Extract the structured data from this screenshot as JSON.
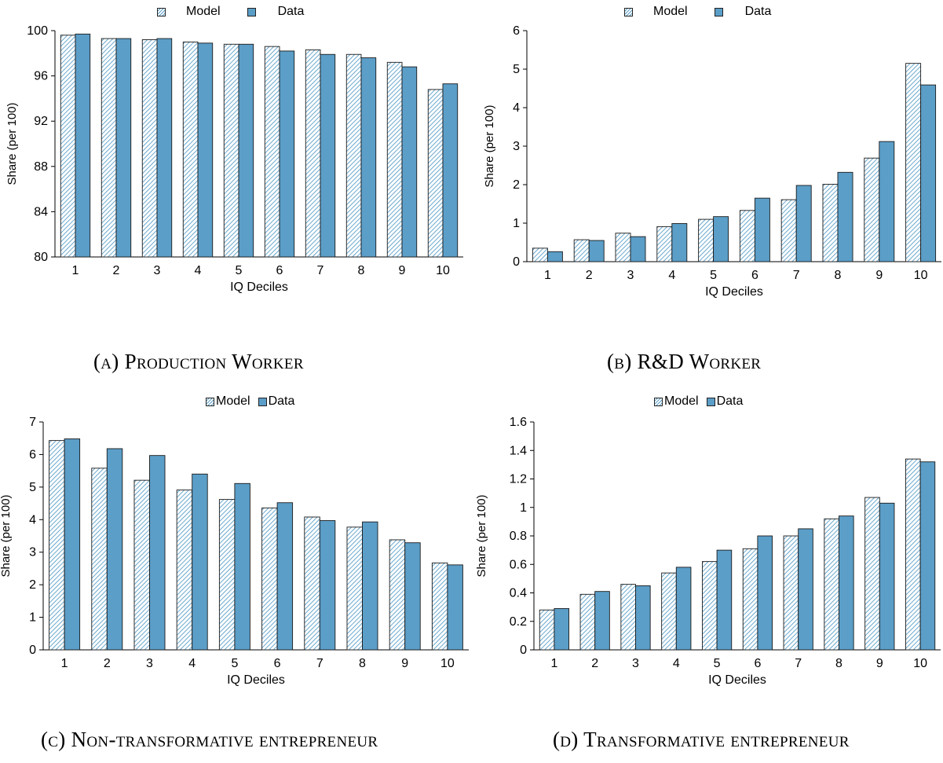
{
  "colors": {
    "data_fill": "#5b9ec8",
    "model_hatch": "#5b9ec8",
    "edge": "#1a1a1a"
  },
  "legend": {
    "model": "Model",
    "data": "Data"
  },
  "captions": {
    "a": "(a) Production Worker",
    "b": "(b) R&D Worker",
    "c": "(c) Non-transformative entrepreneur",
    "d": "(d) Transformative entrepreneur"
  },
  "chart_data": [
    {
      "type": "bar",
      "xlabel": "IQ Deciles",
      "ylabel": "Share (per 100)",
      "categories": [
        "1",
        "2",
        "3",
        "4",
        "5",
        "6",
        "7",
        "8",
        "9",
        "10"
      ],
      "ylim": [
        80,
        100
      ],
      "yticks": [
        80,
        84,
        88,
        92,
        96,
        100
      ],
      "legend_position": "top",
      "series": [
        {
          "name": "Model",
          "values": [
            99.6,
            99.3,
            99.2,
            99.0,
            98.8,
            98.6,
            98.3,
            97.9,
            97.2,
            94.8
          ]
        },
        {
          "name": "Data",
          "values": [
            99.7,
            99.3,
            99.3,
            98.9,
            98.8,
            98.2,
            97.9,
            97.6,
            96.8,
            95.3
          ]
        }
      ]
    },
    {
      "type": "bar",
      "xlabel": "IQ Deciles",
      "ylabel": "Share (per 100)",
      "categories": [
        "1",
        "2",
        "3",
        "4",
        "5",
        "6",
        "7",
        "8",
        "9",
        "10"
      ],
      "ylim": [
        0,
        6
      ],
      "yticks": [
        0,
        1,
        2,
        3,
        4,
        5,
        6
      ],
      "legend_position": "top",
      "series": [
        {
          "name": "Model",
          "values": [
            0.35,
            0.57,
            0.74,
            0.91,
            1.1,
            1.33,
            1.61,
            2.01,
            2.69,
            5.15
          ]
        },
        {
          "name": "Data",
          "values": [
            0.26,
            0.55,
            0.65,
            0.99,
            1.17,
            1.65,
            1.98,
            2.32,
            3.12,
            4.59
          ]
        }
      ]
    },
    {
      "type": "bar",
      "xlabel": "IQ Deciles",
      "ylabel": "Share (per 100)",
      "categories": [
        "1",
        "2",
        "3",
        "4",
        "5",
        "6",
        "7",
        "8",
        "9",
        "10"
      ],
      "ylim": [
        0,
        7
      ],
      "yticks": [
        0,
        1,
        2,
        3,
        4,
        5,
        6,
        7
      ],
      "legend_position": "top",
      "series": [
        {
          "name": "Model",
          "values": [
            6.43,
            5.58,
            5.21,
            4.91,
            4.62,
            4.36,
            4.08,
            3.77,
            3.38,
            2.67
          ]
        },
        {
          "name": "Data",
          "values": [
            6.48,
            6.18,
            5.97,
            5.4,
            5.11,
            4.52,
            3.97,
            3.93,
            3.29,
            2.61
          ]
        }
      ]
    },
    {
      "type": "bar",
      "xlabel": "IQ Deciles",
      "ylabel": "Share (per 100)",
      "categories": [
        "1",
        "2",
        "3",
        "4",
        "5",
        "6",
        "7",
        "8",
        "9",
        "10"
      ],
      "ylim": [
        0,
        1.6
      ],
      "yticks": [
        "0",
        "0.2",
        "0.4",
        "0.6",
        "0.8",
        "1",
        "1.2",
        "1.4",
        "1.6"
      ],
      "legend_position": "top",
      "series": [
        {
          "name": "Model",
          "values": [
            0.28,
            0.39,
            0.46,
            0.54,
            0.62,
            0.71,
            0.8,
            0.92,
            1.07,
            1.34
          ]
        },
        {
          "name": "Data",
          "values": [
            0.29,
            0.41,
            0.45,
            0.58,
            0.7,
            0.8,
            0.85,
            0.94,
            1.03,
            1.32
          ]
        }
      ]
    }
  ]
}
